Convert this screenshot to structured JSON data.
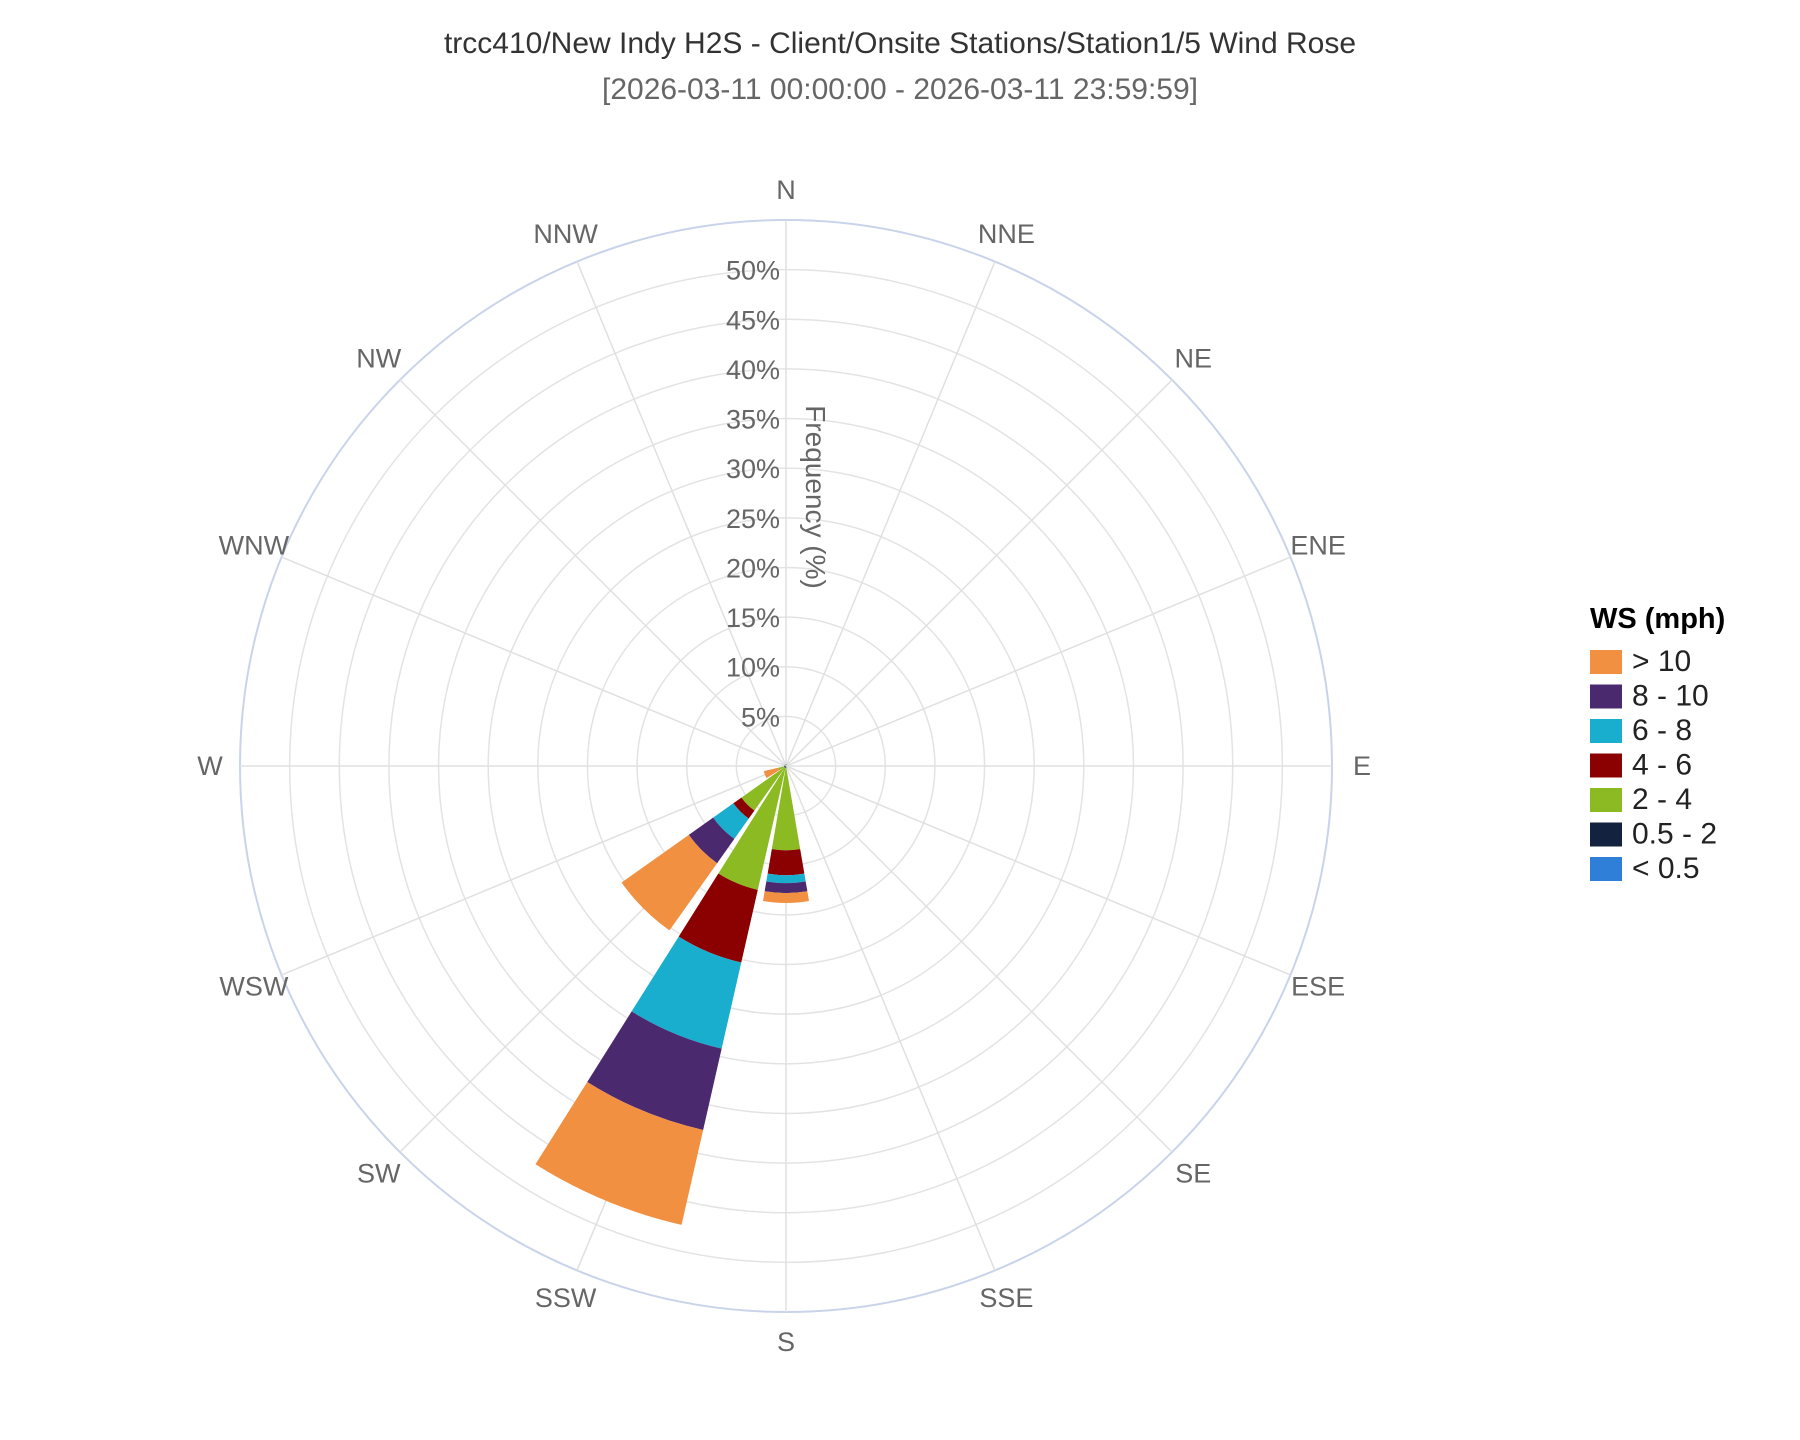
{
  "title": "trcc410/New Indy H2S - Client/Onsite Stations/Station1/5 Wind Rose",
  "subtitle": "[2026-03-11 00:00:00 - 2026-03-11 23:59:59]",
  "chart_data": {
    "type": "wind-rose",
    "radial_axis_label": "Frequency (%)",
    "radial_ticks": [
      "5%",
      "10%",
      "15%",
      "20%",
      "25%",
      "30%",
      "35%",
      "40%",
      "45%",
      "50%"
    ],
    "radial_range": [
      0,
      55
    ],
    "directions": [
      "N",
      "NNE",
      "NE",
      "ENE",
      "E",
      "ESE",
      "SE",
      "SSE",
      "S",
      "SSW",
      "SW",
      "WSW",
      "W",
      "WNW",
      "NW",
      "NNW"
    ],
    "legend_title": "WS (mph)",
    "legend_position": "right",
    "series": [
      {
        "name": "< 0.5",
        "color": "#2F7FD8",
        "values": [
          0,
          0,
          0,
          0,
          0,
          0,
          0,
          0,
          0,
          0,
          0,
          0,
          0,
          0,
          0,
          0
        ]
      },
      {
        "name": "0.5 - 2",
        "color": "#13233F",
        "values": [
          0.2,
          0,
          0,
          0,
          0,
          0,
          0,
          0,
          0.2,
          0.2,
          0.2,
          0.2,
          0.2,
          0,
          0,
          0
        ]
      },
      {
        "name": "2 - 4",
        "color": "#8BBA22",
        "values": [
          0,
          0,
          0,
          0,
          0,
          0,
          0,
          0,
          8.3,
          12.6,
          5.3,
          0.6,
          0,
          0,
          0,
          0
        ]
      },
      {
        "name": "4 - 6",
        "color": "#8B0000",
        "values": [
          0,
          0,
          0,
          0,
          0,
          0,
          0,
          0,
          2.5,
          7.5,
          1.0,
          0,
          0,
          0,
          0,
          0
        ]
      },
      {
        "name": "6 - 8",
        "color": "#1AAECE",
        "values": [
          0,
          0,
          0,
          0,
          0,
          0,
          0,
          0,
          0.8,
          8.9,
          2.5,
          0,
          0,
          0,
          0,
          0
        ]
      },
      {
        "name": "8 - 10",
        "color": "#4A296E",
        "values": [
          0,
          0,
          0,
          0,
          0,
          0,
          0,
          0,
          1.0,
          8.4,
          3.0,
          0,
          0,
          0,
          0,
          0
        ]
      },
      {
        "name": "> 10",
        "color": "#F29041",
        "values": [
          0,
          0,
          0,
          0,
          0,
          0,
          0,
          0,
          1.0,
          9.8,
          8.3,
          1.5,
          0,
          0,
          0,
          0
        ]
      }
    ]
  },
  "legend_order": [
    "> 10",
    "8 - 10",
    "6 - 8",
    "4 - 6",
    "2 - 4",
    "0.5 - 2",
    "< 0.5"
  ]
}
